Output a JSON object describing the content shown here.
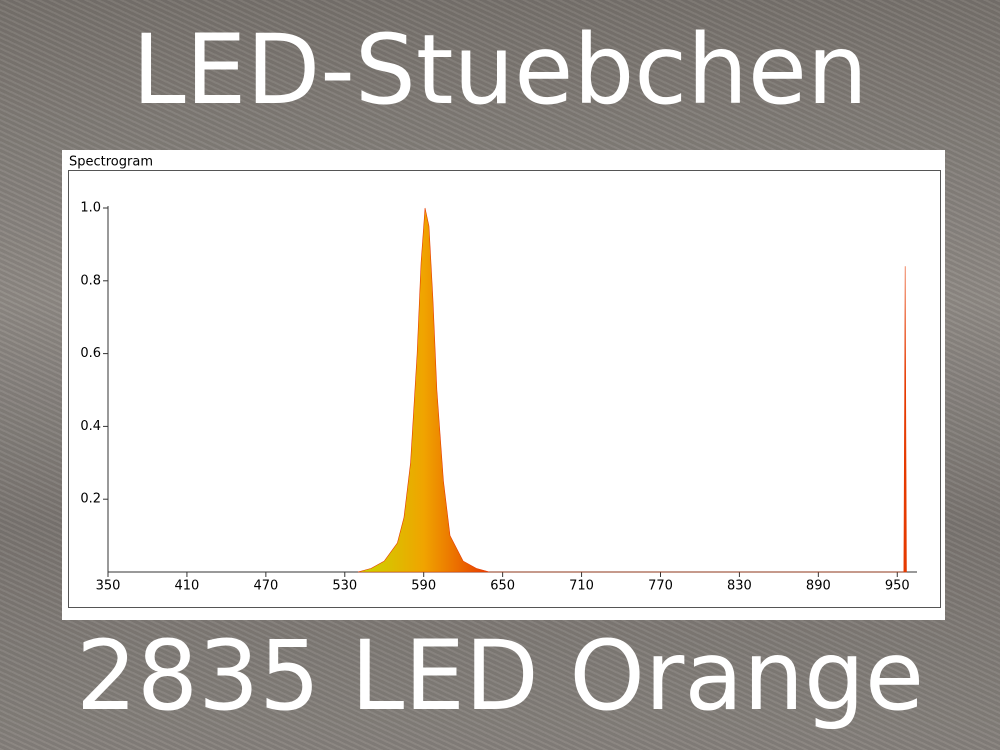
{
  "header": {
    "title": "LED-Stuebchen"
  },
  "footer": {
    "caption": "2835 LED Orange"
  },
  "chart_data": {
    "type": "area",
    "title": "Spectrogram",
    "x": [
      540,
      550,
      560,
      570,
      575,
      580,
      585,
      588,
      591,
      594,
      597,
      600,
      605,
      610,
      620,
      630,
      640,
      955,
      956,
      957
    ],
    "values": [
      0,
      0.01,
      0.03,
      0.08,
      0.15,
      0.3,
      0.6,
      0.85,
      1.0,
      0.95,
      0.75,
      0.5,
      0.25,
      0.1,
      0.03,
      0.01,
      0,
      0,
      0.84,
      0
    ],
    "colors": [
      "#c8d800",
      "#f0a400",
      "#e63a00"
    ],
    "xlim": [
      350,
      965
    ],
    "ylim": [
      0,
      1
    ],
    "xticks": [
      350,
      410,
      470,
      530,
      590,
      650,
      710,
      770,
      830,
      890,
      950
    ],
    "yticks": [
      0.2,
      0.4,
      0.6,
      0.8,
      {
        "value": 1,
        "label": "1.0"
      }
    ]
  }
}
